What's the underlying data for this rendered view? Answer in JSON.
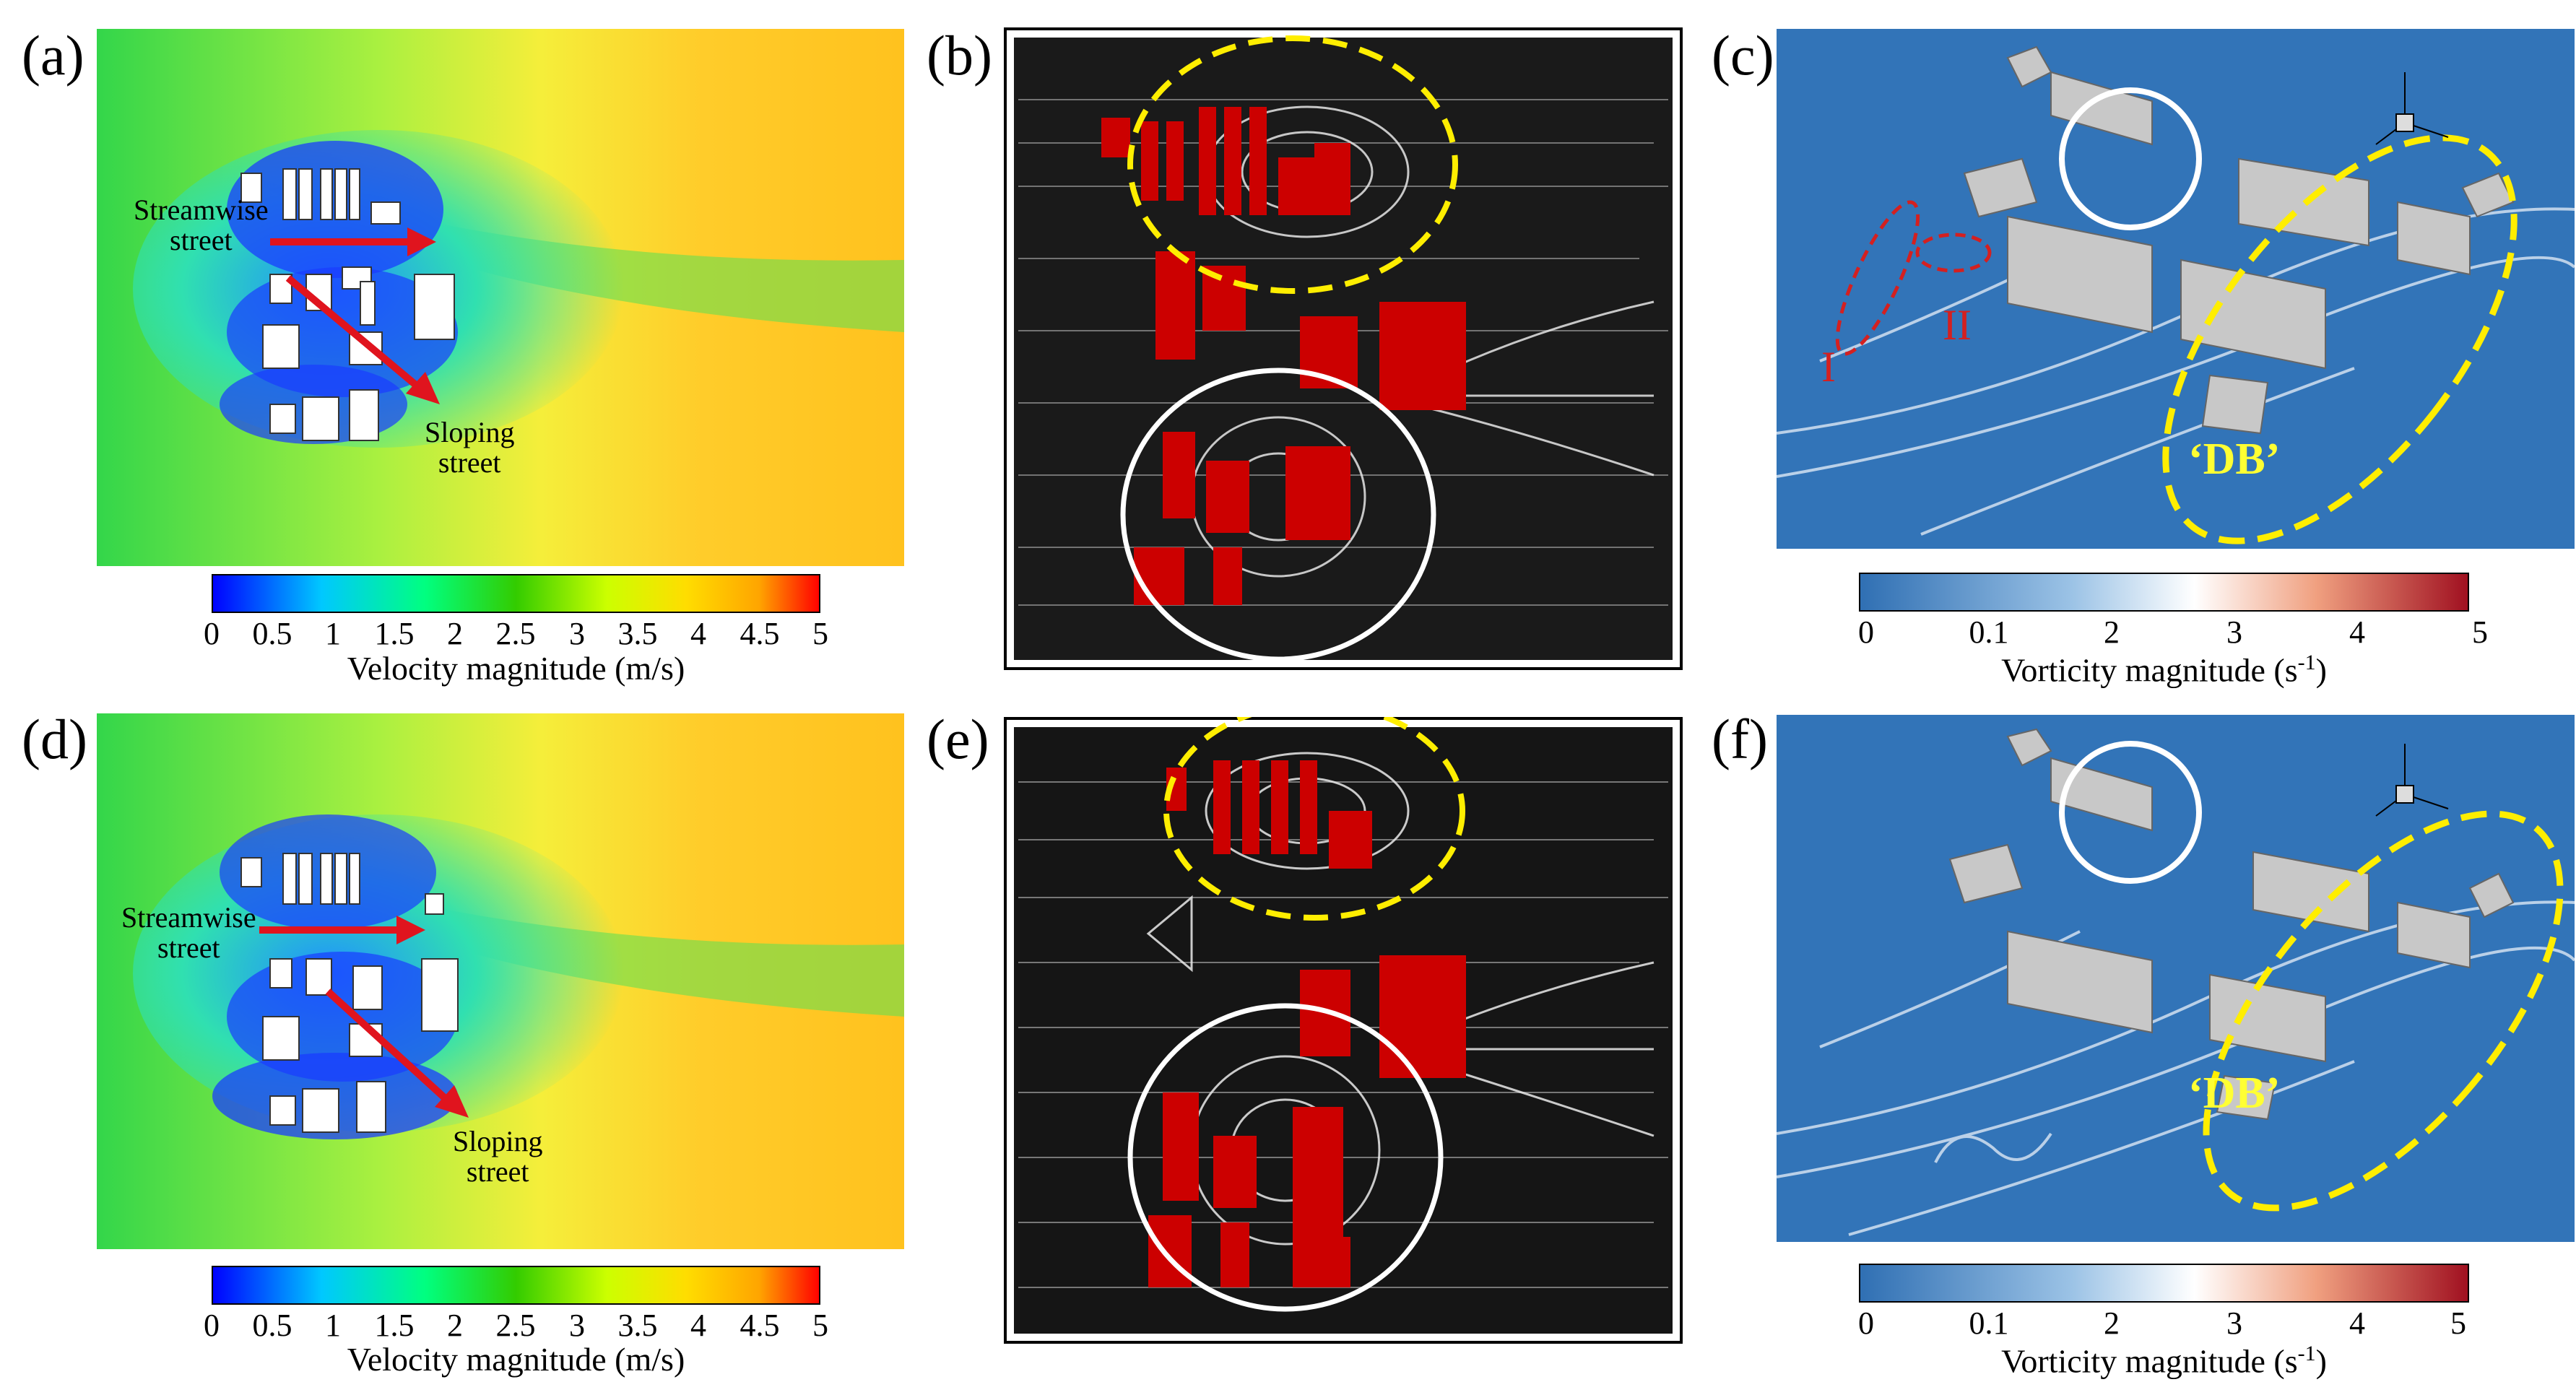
{
  "panels": {
    "a": {
      "label": "(a)",
      "streamwise": [
        "Streamwise",
        "street"
      ],
      "sloping": [
        "Sloping",
        "street"
      ]
    },
    "b": {
      "label": "(b)"
    },
    "c": {
      "label": "(c)",
      "region_i": "I",
      "region_ii": "II",
      "db": "‘DB’"
    },
    "d": {
      "label": "(d)",
      "streamwise": [
        "Streamwise",
        "street"
      ],
      "sloping": [
        "Sloping",
        "street"
      ]
    },
    "e": {
      "label": "(e)"
    },
    "f": {
      "label": "(f)",
      "db": "‘DB’"
    }
  },
  "velocity_colorbar": {
    "ticks": [
      "0",
      "0.5",
      "1",
      "1.5",
      "2",
      "2.5",
      "3",
      "3.5",
      "4",
      "4.5",
      "5"
    ],
    "title": "Velocity magnitude (m/s)",
    "colors": [
      "#0000ff",
      "#00c8ff",
      "#00ff80",
      "#33cc00",
      "#ccff00",
      "#ffdd00",
      "#ffa500",
      "#ff0000"
    ]
  },
  "vorticity_colorbar": {
    "ticks": [
      "0",
      "0.1",
      "2",
      "3",
      "4",
      "5"
    ],
    "title": "Vorticity magnitude (s",
    "title_sup": "-1",
    "title_end": ")",
    "colors": [
      "#2f6fb3",
      "#ffffff",
      "#f0a080",
      "#a01020"
    ]
  },
  "colors": {
    "building_red": "#cc0000",
    "annotation_yellow": "#ffee00",
    "arrow_red": "#e0141e",
    "vorticity_bg": "#3274b8"
  }
}
